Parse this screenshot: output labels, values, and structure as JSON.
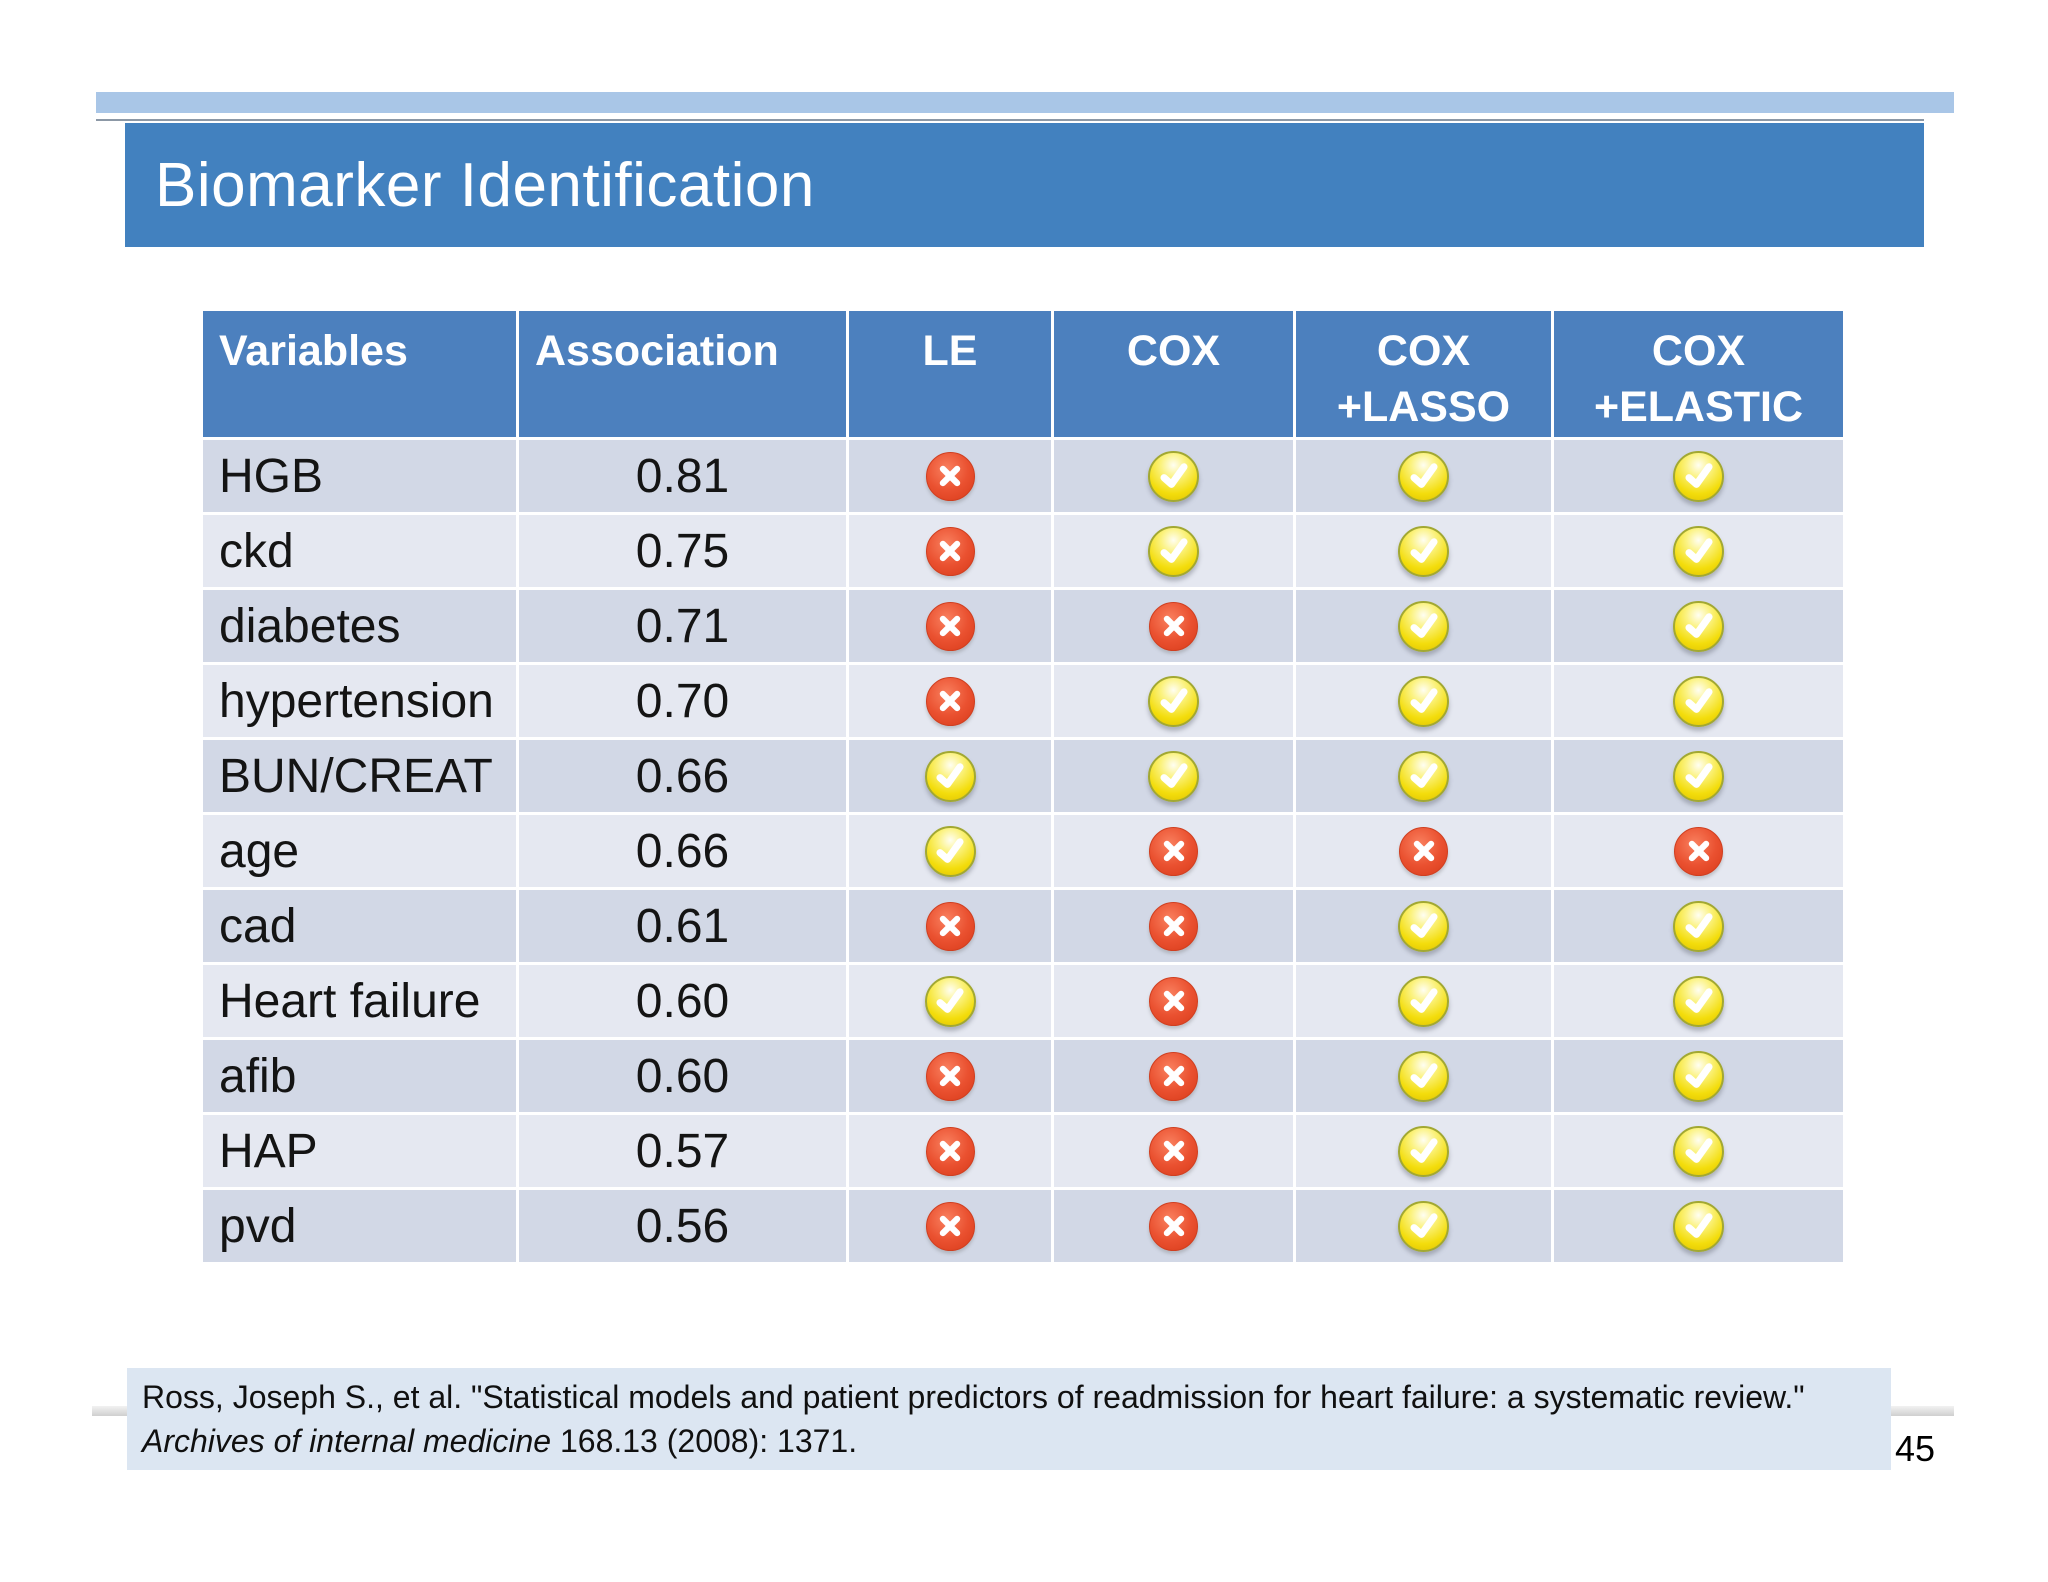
{
  "slide": {
    "title": "Biomarker Identification",
    "page_number": "45"
  },
  "citation": {
    "part1": "Ross, Joseph S., et al. \"Statistical models and patient predictors of readmission for heart failure: a systematic review.\" ",
    "italic": "Archives of internal medicine",
    "part2": " 168.13 (2008): 1371."
  },
  "colors": {
    "accent_strip": "#A9C6E7",
    "title_bar": "#4281BF",
    "header_bg": "#4C80BE",
    "row_dark": "#D2D8E6",
    "row_light": "#E5E8F1",
    "citation_bg": "#DCE6F2",
    "check_yellow": "#F3DD0C",
    "check_border": "#A2A832",
    "cross_red": "#E2482A",
    "mark_glyph": "#FFFFFF"
  },
  "icons": {
    "check": "check-icon",
    "cross": "cross-icon"
  },
  "chart_data": {
    "type": "table",
    "title": "Biomarker Identification",
    "columns": [
      {
        "id": "variable",
        "lines": [
          "Variables"
        ]
      },
      {
        "id": "association",
        "lines": [
          "Association"
        ]
      },
      {
        "id": "le",
        "lines": [
          "LE"
        ]
      },
      {
        "id": "cox",
        "lines": [
          "COX"
        ]
      },
      {
        "id": "cox_lasso",
        "lines": [
          "COX",
          "+LASSO"
        ]
      },
      {
        "id": "cox_elastic",
        "lines": [
          "COX",
          "+ELASTIC"
        ]
      }
    ],
    "icon_legend": {
      "check": "variable selected by model",
      "cross": "variable not selected by model"
    },
    "rows": [
      {
        "variable": "HGB",
        "association": "0.81",
        "le": "cross",
        "cox": "check",
        "cox_lasso": "check",
        "cox_elastic": "check"
      },
      {
        "variable": "ckd",
        "association": "0.75",
        "le": "cross",
        "cox": "check",
        "cox_lasso": "check",
        "cox_elastic": "check"
      },
      {
        "variable": "diabetes",
        "association": "0.71",
        "le": "cross",
        "cox": "cross",
        "cox_lasso": "check",
        "cox_elastic": "check"
      },
      {
        "variable": "hypertension",
        "association": "0.70",
        "le": "cross",
        "cox": "check",
        "cox_lasso": "check",
        "cox_elastic": "check"
      },
      {
        "variable": "BUN/CREAT",
        "association": "0.66",
        "le": "check",
        "cox": "check",
        "cox_lasso": "check",
        "cox_elastic": "check"
      },
      {
        "variable": "age",
        "association": "0.66",
        "le": "check",
        "cox": "cross",
        "cox_lasso": "cross",
        "cox_elastic": "cross"
      },
      {
        "variable": "cad",
        "association": "0.61",
        "le": "cross",
        "cox": "cross",
        "cox_lasso": "check",
        "cox_elastic": "check"
      },
      {
        "variable": "Heart failure",
        "association": "0.60",
        "le": "check",
        "cox": "cross",
        "cox_lasso": "check",
        "cox_elastic": "check"
      },
      {
        "variable": "afib",
        "association": "0.60",
        "le": "cross",
        "cox": "cross",
        "cox_lasso": "check",
        "cox_elastic": "check"
      },
      {
        "variable": "HAP",
        "association": "0.57",
        "le": "cross",
        "cox": "cross",
        "cox_lasso": "check",
        "cox_elastic": "check"
      },
      {
        "variable": "pvd",
        "association": "0.56",
        "le": "cross",
        "cox": "cross",
        "cox_lasso": "check",
        "cox_elastic": "check"
      }
    ]
  }
}
